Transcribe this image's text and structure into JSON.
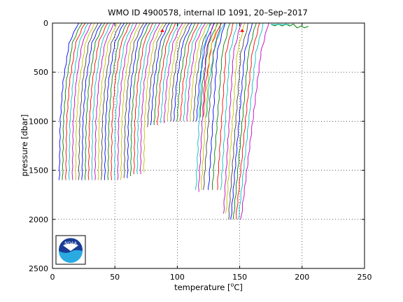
{
  "chart_data": {
    "type": "line",
    "title": "WMO ID 4900578, internal ID 1091, 20–Sep–2017",
    "xlabel_parts": [
      "temperature [",
      "o",
      "C]"
    ],
    "ylabel": "pressure [dbar]",
    "xlim": [
      0,
      250
    ],
    "ylim": [
      0,
      2500
    ],
    "y_reversed": true,
    "x_ticks": [
      0,
      50,
      100,
      150,
      200,
      250
    ],
    "y_ticks": [
      0,
      500,
      1000,
      1500,
      2000,
      2500
    ],
    "grid": true,
    "profile_note": "Profiles are horizontally offset; each line is one float profile (temperature vs pressure).",
    "profiles_shallow_group": {
      "count": 46,
      "start_offset": 5,
      "spacing": 2.6,
      "depths": [
        1600,
        1600,
        1600,
        1600,
        1600,
        1600,
        1600,
        1600,
        1600,
        1600,
        1600,
        1600,
        1600,
        1600,
        1600,
        1600,
        1600,
        1600,
        1600,
        1600,
        1580,
        1580,
        1560,
        1550,
        1540,
        1540,
        1520,
        1060,
        1040,
        1040,
        1040,
        1030,
        1020,
        1000,
        1000,
        1000,
        1000,
        1000,
        1000,
        1000,
        1000,
        1000,
        1000,
        960,
        960,
        960
      ]
    },
    "profiles_deep_group": {
      "surface_x": [
        118,
        121,
        124,
        127,
        130,
        134,
        137,
        140,
        143,
        146,
        149,
        152,
        155,
        158,
        161,
        165
      ],
      "bottom_x": [
        115,
        117,
        119,
        121,
        125,
        128,
        132,
        135,
        137,
        139,
        141,
        143,
        145,
        147,
        149,
        151
      ],
      "depths": [
        1700,
        1720,
        1700,
        1700,
        1700,
        1700,
        1700,
        1700,
        1950,
        1950,
        2000,
        2000,
        2000,
        2000,
        2000,
        2000
      ]
    },
    "surface_marker_x": [
      88,
      152
    ],
    "near_surface_trace_x": [
      180,
      205
    ],
    "series_colors": [
      "#0000ff",
      "#008000",
      "#ff0000",
      "#00bfbf",
      "#bf00bf",
      "#bfbf00",
      "#404040"
    ]
  },
  "logo": {
    "label": "NOAA",
    "colors": {
      "blue": "#1a3c94",
      "light_blue": "#29abe2",
      "white": "#ffffff"
    }
  }
}
